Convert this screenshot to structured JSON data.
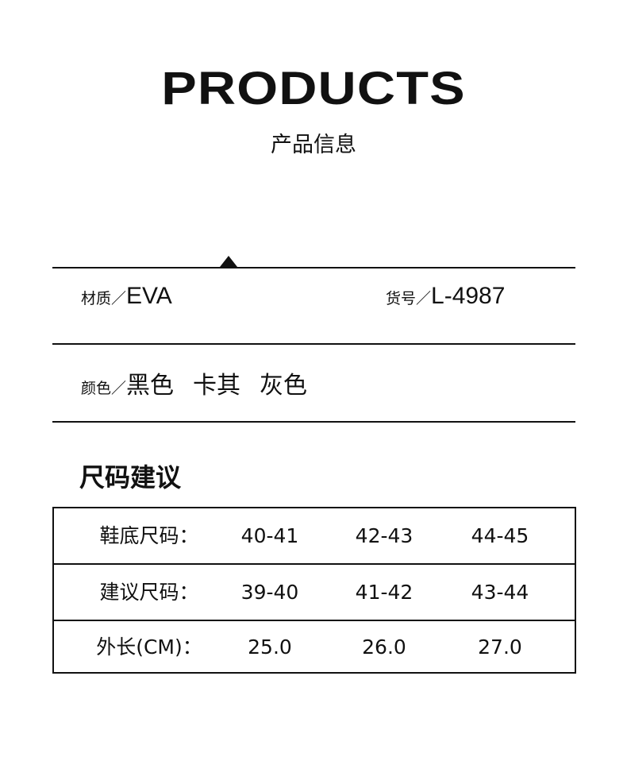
{
  "header": {
    "title": "PRODUCTS",
    "subtitle": "产品信息"
  },
  "info": {
    "material_label": "材质／",
    "material_value": "EVA",
    "sku_label": "货号／",
    "sku_value": "L-4987",
    "color_label": "颜色／",
    "colors": [
      "黑色",
      "卡其",
      "灰色"
    ]
  },
  "size_section": {
    "title": "尺码建议"
  },
  "size_table": {
    "rows": [
      {
        "label": "鞋底尺码：",
        "values": [
          "40-41",
          "42-43",
          "44-45"
        ]
      },
      {
        "label": "建议尺码：",
        "values": [
          "39-40",
          "41-42",
          "43-44"
        ]
      },
      {
        "label": "外长(CM)：",
        "values": [
          "25.0",
          "26.0",
          "27.0"
        ]
      }
    ]
  }
}
